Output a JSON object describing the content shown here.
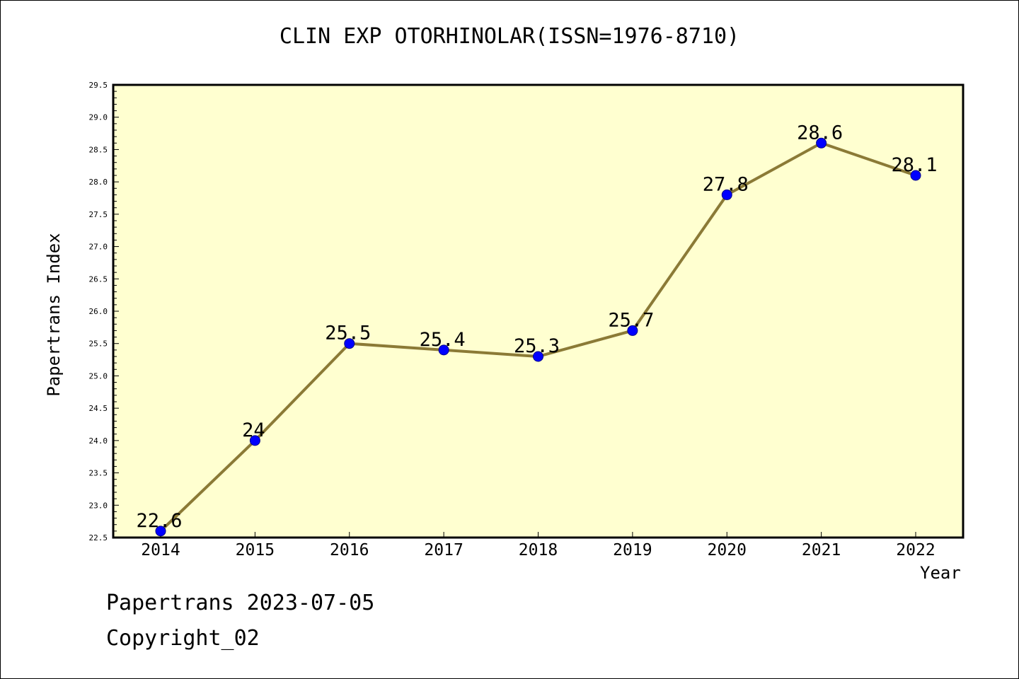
{
  "title": "CLIN EXP OTORHINOLAR(ISSN=1976-8710)",
  "footer": {
    "line1": "Papertrans 2023-07-05",
    "line2": "Copyright_02"
  },
  "colors": {
    "plot_bg": "#FFFFD0",
    "line": "#8B7A36",
    "marker": "#0000FF",
    "axis": "#000000"
  },
  "chart_data": {
    "type": "line",
    "title": "CLIN EXP OTORHINOLAR(ISSN=1976-8710)",
    "xlabel": "Year",
    "ylabel": "Papertrans Index",
    "categories": [
      "2014",
      "2015",
      "2016",
      "2017",
      "2018",
      "2019",
      "2020",
      "2021",
      "2022"
    ],
    "values": [
      22.6,
      24,
      25.5,
      25.4,
      25.3,
      25.7,
      27.8,
      28.6,
      28.1
    ],
    "data_labels": [
      "22.6",
      "24",
      "25.5",
      "25.4",
      "25.3",
      "25.7",
      "27.8",
      "28.6",
      "28.1"
    ],
    "ylim": [
      22.5,
      29.5
    ],
    "yticks": [
      "22.5",
      "23.0",
      "23.5",
      "24.0",
      "24.5",
      "25.0",
      "25.5",
      "26.0",
      "26.5",
      "27.0",
      "27.5",
      "28.0",
      "28.5",
      "29.0",
      "29.5"
    ],
    "grid": false,
    "legend": "none"
  }
}
